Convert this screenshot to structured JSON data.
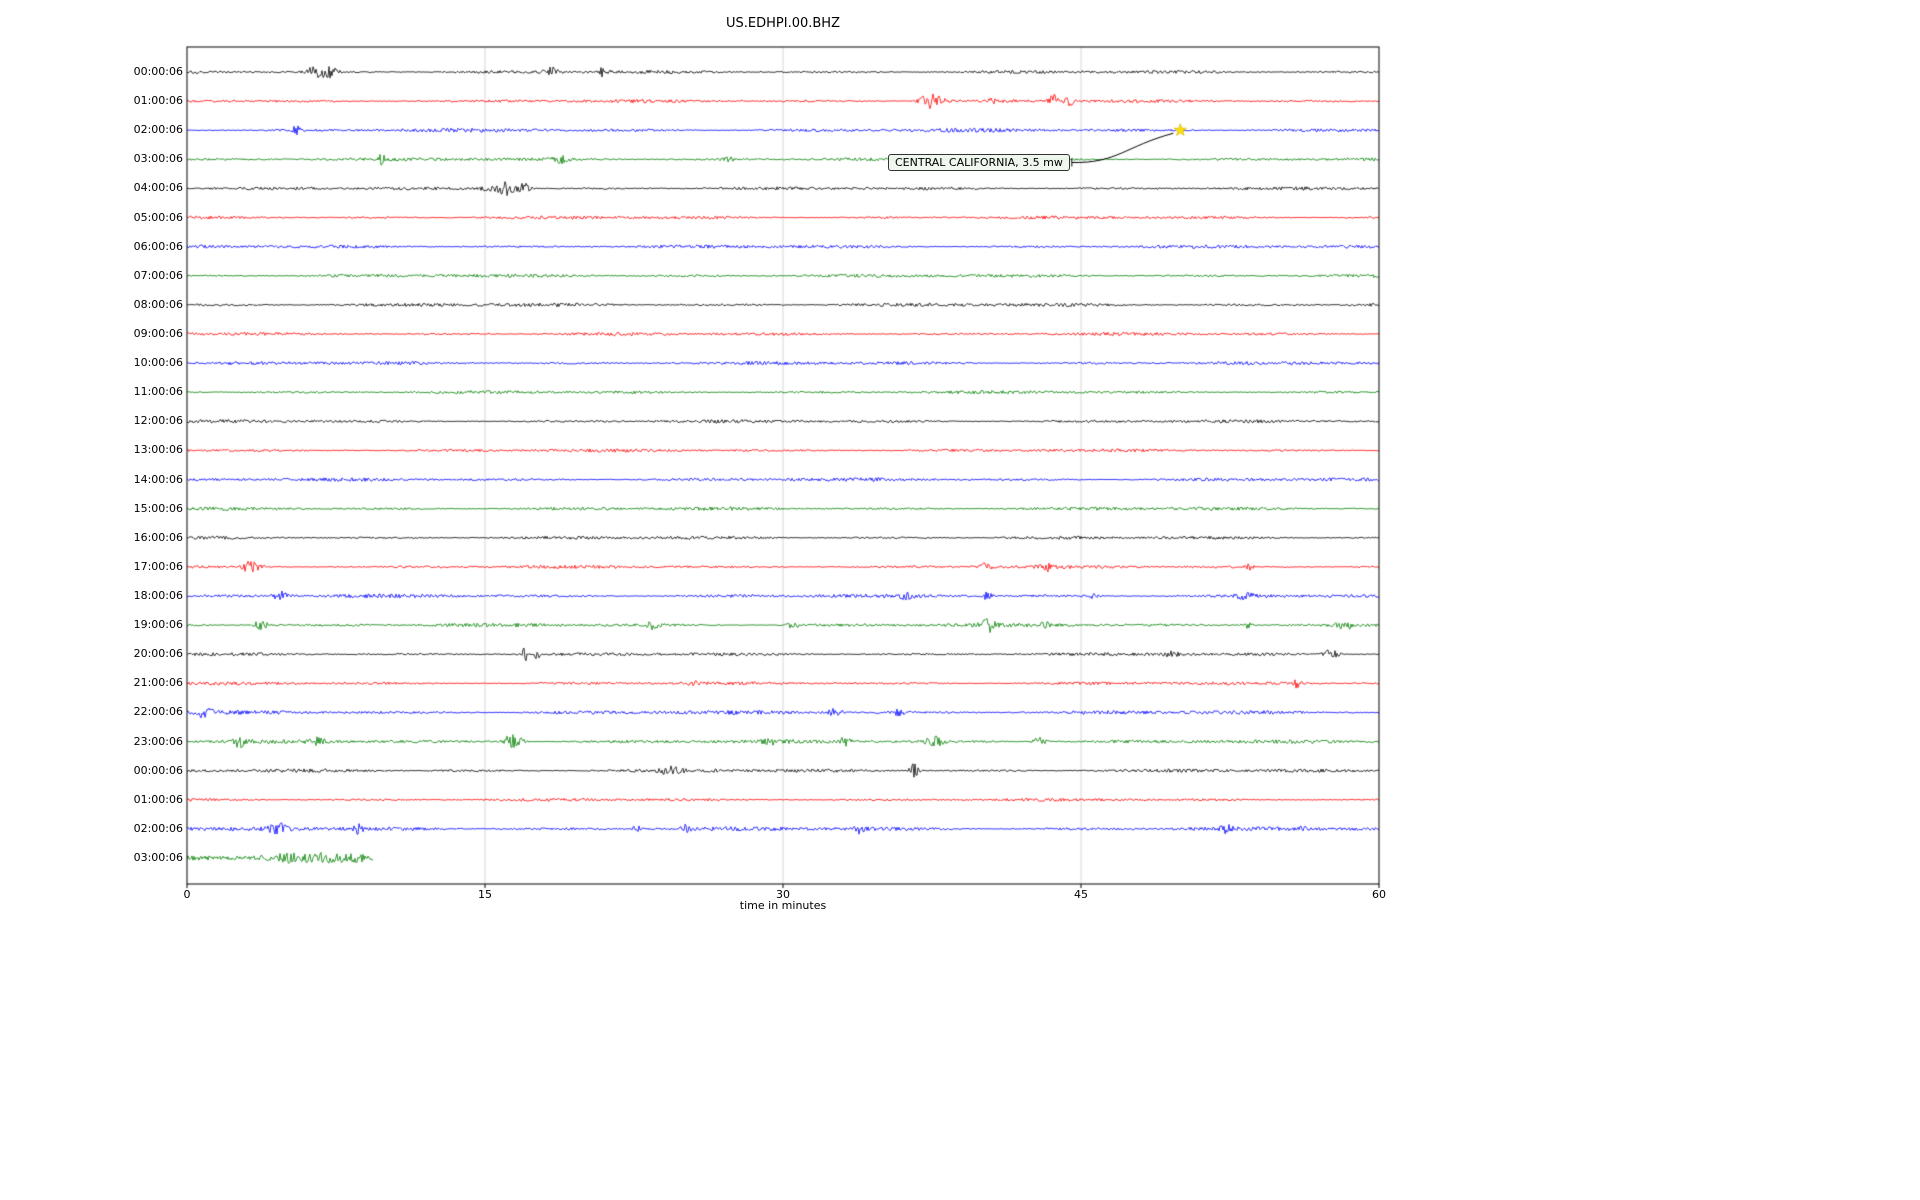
{
  "chart_data": {
    "type": "line",
    "subtype": "seismogram-dayplot",
    "title": "US.EDHPI.00.BHZ",
    "xlabel": "time in minutes",
    "xlim": [
      0,
      60
    ],
    "xticks": [
      0,
      15,
      30,
      45,
      60
    ],
    "xtick_labels": [
      "0",
      "15",
      "30",
      "45",
      "60"
    ],
    "grid": true,
    "grid_color": "#cccccc",
    "colors_cycle": [
      "#000000",
      "#ff0000",
      "#0000ff",
      "#008000"
    ],
    "annotation": {
      "label": "CENTRAL CALIFORNIA, 3.5 mw",
      "row_index": 2,
      "x_minutes": 50,
      "marker": "star",
      "marker_color": "#ffdf00"
    },
    "rows": [
      {
        "label": "00:00:06",
        "color": "#000000",
        "noise": 1.3,
        "x_end": 60,
        "events": [
          [
            6.4,
            5,
            0.25
          ],
          [
            7.1,
            6,
            0.3
          ],
          [
            18.3,
            5,
            0.25
          ],
          [
            20.9,
            4,
            0.1
          ],
          [
            21.3,
            3,
            0.08
          ]
        ]
      },
      {
        "label": "01:00:06",
        "color": "#ff0000",
        "noise": 1.3,
        "x_end": 60,
        "events": [
          [
            37.4,
            8,
            0.35
          ],
          [
            38.1,
            4,
            0.2
          ],
          [
            40.5,
            3,
            0.15
          ],
          [
            43.6,
            6,
            0.18
          ],
          [
            44.4,
            5,
            0.15
          ]
        ]
      },
      {
        "label": "02:00:06",
        "color": "#0000ff",
        "noise": 1.5,
        "x_end": 60,
        "events": [
          [
            5.5,
            5,
            0.12
          ]
        ]
      },
      {
        "label": "03:00:06",
        "color": "#008000",
        "noise": 1.4,
        "x_end": 60,
        "events": [
          [
            9.8,
            6,
            0.1
          ],
          [
            18.8,
            3.5,
            0.3
          ],
          [
            27.2,
            2.5,
            0.2
          ]
        ]
      },
      {
        "label": "04:00:06",
        "color": "#000000",
        "noise": 1.3,
        "x_end": 60,
        "events": [
          [
            15.2,
            4,
            0.3
          ],
          [
            16.1,
            7,
            0.3
          ],
          [
            16.9,
            6,
            0.25
          ]
        ]
      },
      {
        "label": "05:00:06",
        "color": "#ff0000",
        "noise": 1.3,
        "x_end": 60,
        "events": []
      },
      {
        "label": "06:00:06",
        "color": "#0000ff",
        "noise": 1.4,
        "x_end": 60,
        "events": []
      },
      {
        "label": "07:00:06",
        "color": "#008000",
        "noise": 1.4,
        "x_end": 60,
        "events": []
      },
      {
        "label": "08:00:06",
        "color": "#000000",
        "noise": 1.5,
        "x_end": 60,
        "events": []
      },
      {
        "label": "09:00:06",
        "color": "#ff0000",
        "noise": 1.3,
        "x_end": 60,
        "events": []
      },
      {
        "label": "10:00:06",
        "color": "#0000ff",
        "noise": 1.4,
        "x_end": 60,
        "events": []
      },
      {
        "label": "11:00:06",
        "color": "#008000",
        "noise": 1.3,
        "x_end": 60,
        "events": []
      },
      {
        "label": "12:00:06",
        "color": "#000000",
        "noise": 1.3,
        "x_end": 60,
        "events": []
      },
      {
        "label": "13:00:06",
        "color": "#ff0000",
        "noise": 1.3,
        "x_end": 60,
        "events": []
      },
      {
        "label": "14:00:06",
        "color": "#0000ff",
        "noise": 1.4,
        "x_end": 60,
        "events": []
      },
      {
        "label": "15:00:06",
        "color": "#008000",
        "noise": 1.4,
        "x_end": 60,
        "events": []
      },
      {
        "label": "16:00:06",
        "color": "#000000",
        "noise": 1.3,
        "x_end": 60,
        "events": []
      },
      {
        "label": "17:00:06",
        "color": "#ff0000",
        "noise": 1.3,
        "x_end": 60,
        "events": [
          [
            3.2,
            6,
            0.3
          ],
          [
            40.2,
            3.5,
            0.2
          ],
          [
            43.3,
            3.5,
            0.2
          ],
          [
            53.5,
            2.5,
            0.15
          ]
        ]
      },
      {
        "label": "18:00:06",
        "color": "#0000ff",
        "noise": 1.5,
        "x_end": 60,
        "events": [
          [
            4.7,
            5,
            0.25
          ],
          [
            36.2,
            2.5,
            0.2
          ],
          [
            40.3,
            3.5,
            0.2
          ],
          [
            45.7,
            3,
            0.15
          ],
          [
            53.2,
            4,
            0.3
          ]
        ]
      },
      {
        "label": "19:00:06",
        "color": "#008000",
        "noise": 1.5,
        "x_end": 60,
        "events": [
          [
            3.7,
            5,
            0.3
          ],
          [
            23.5,
            5,
            0.2
          ],
          [
            30.5,
            3,
            0.2
          ],
          [
            40.3,
            6,
            0.25
          ],
          [
            43.2,
            3,
            0.15
          ],
          [
            53.4,
            4,
            0.2
          ],
          [
            58.2,
            5,
            0.3
          ]
        ]
      },
      {
        "label": "20:00:06",
        "color": "#000000",
        "noise": 1.3,
        "x_end": 60,
        "events": [
          [
            17.0,
            10,
            0.07
          ],
          [
            17.6,
            5,
            0.1
          ],
          [
            49.6,
            3.5,
            0.25
          ],
          [
            57.6,
            5,
            0.3
          ]
        ]
      },
      {
        "label": "21:00:06",
        "color": "#ff0000",
        "noise": 1.3,
        "x_end": 60,
        "events": [
          [
            25.5,
            2,
            0.15
          ],
          [
            55.9,
            6,
            0.12
          ]
        ]
      },
      {
        "label": "22:00:06",
        "color": "#0000ff",
        "noise": 1.6,
        "x_end": 60,
        "events": [
          [
            0.9,
            5,
            0.25
          ],
          [
            32.6,
            4,
            0.25
          ],
          [
            35.8,
            3.5,
            0.2
          ]
        ]
      },
      {
        "label": "23:00:06",
        "color": "#008000",
        "noise": 1.5,
        "x_end": 60,
        "events": [
          [
            2.6,
            5,
            0.3
          ],
          [
            6.6,
            4,
            0.25
          ],
          [
            16.4,
            7,
            0.35
          ],
          [
            29.3,
            3,
            0.2
          ],
          [
            33.1,
            4,
            0.2
          ],
          [
            37.6,
            6,
            0.3
          ],
          [
            42.9,
            4,
            0.25
          ]
        ]
      },
      {
        "label": "00:00:06",
        "color": "#000000",
        "noise": 1.4,
        "x_end": 60,
        "events": [
          [
            24.4,
            4,
            0.4
          ],
          [
            26.7,
            2.5,
            0.2
          ],
          [
            36.6,
            8,
            0.15
          ]
        ]
      },
      {
        "label": "01:00:06",
        "color": "#ff0000",
        "noise": 1.2,
        "x_end": 60,
        "events": []
      },
      {
        "label": "02:00:06",
        "color": "#0000ff",
        "noise": 1.7,
        "x_end": 60,
        "events": [
          [
            4.6,
            6,
            0.3
          ],
          [
            8.6,
            4,
            0.2
          ],
          [
            22.6,
            4,
            0.15
          ],
          [
            25.1,
            4,
            0.15
          ],
          [
            33.9,
            4,
            0.2
          ],
          [
            52.3,
            3,
            0.2
          ],
          [
            56.2,
            2.5,
            0.15
          ]
        ]
      },
      {
        "label": "03:00:06",
        "color": "#008000",
        "noise": 2.2,
        "x_end": 9.4,
        "events": [
          [
            5.2,
            3,
            0.8
          ],
          [
            7.0,
            3,
            0.6
          ],
          [
            8.6,
            2.5,
            0.4
          ]
        ]
      }
    ]
  }
}
